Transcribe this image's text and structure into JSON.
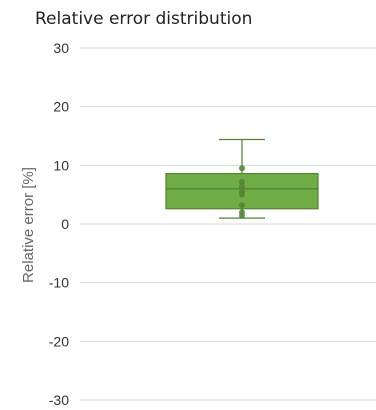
{
  "chart_data": {
    "type": "box",
    "title": "Relative error distribution",
    "xlabel": "",
    "ylabel": "Relative error [%]",
    "ylim": [
      -30,
      30
    ],
    "yticks": [
      30,
      20,
      10,
      0,
      -10,
      -20,
      -30
    ],
    "grid": "horizontal",
    "color": "#70AD47",
    "edge_color": "#548235",
    "box": {
      "whisker_low": 1.0,
      "q1": 2.6,
      "median": 6.0,
      "q3": 8.6,
      "whisker_high": 14.4
    },
    "points": [
      9.5,
      7.2,
      6.4,
      5.6,
      5.0,
      3.2,
      2.0,
      1.4
    ]
  }
}
